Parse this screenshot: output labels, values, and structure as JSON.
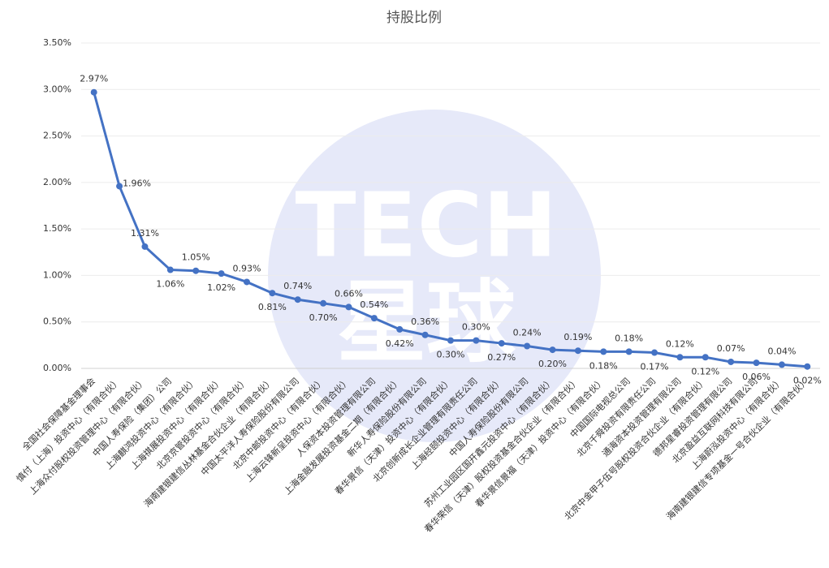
{
  "chart_data": {
    "type": "line",
    "title": "持股比例",
    "watermark": [
      "TECH",
      "星球"
    ],
    "categories": [
      "全国社会保障基金理事会",
      "慎付（上海）投资中心（有限合伙）",
      "上海众付股权投资管理中心（有限合伙）",
      "中国人寿保险（集团）公司",
      "上海麒鸿投资中心（有限合伙）",
      "上海祺展投资中心（有限合伙）",
      "北京京管投资中心（有限合伙）",
      "海南建银建信丛林基金合伙企业（有限合伙）",
      "中国太平洋人寿保险股份有限公司",
      "北京中邮投资中心（有限合伙）",
      "上海云锋新呈投资中心（有限合伙）",
      "人保资本投资管理有限公司",
      "上海金融发展投资基金二期（有限合伙）",
      "新华人寿保险股份有限公司",
      "春华景信（天津）投资中心（有限合伙）",
      "北京创新成长企业管理有限责任公司",
      "上海经颐投资中心（有限合伙）",
      "中国人寿保险股份有限公司",
      "苏州工业园区国开鑫元投资中心（有限合伙）",
      "春华荣信（天津）股权投资基金合伙企业（有限合伙）",
      "春华景信景福（天津）投资中心（有限合伙）",
      "中国国际电视总公司",
      "北京千舜投资有限责任公司",
      "通海资本投资管理有限公司",
      "北京中金甲子伍号股权投资合伙企业（有限合伙）",
      "德邦星睿投资管理有限公司",
      "北京盈益互联网科技有限公司",
      "上海蔚泓投资中心（有限合伙）",
      "海南建银建信专项基金一号合伙企业（有限合伙）"
    ],
    "series": [
      {
        "name": "持股比例",
        "color": "#4472c4",
        "values": [
          2.97,
          1.96,
          1.31,
          1.06,
          1.05,
          1.02,
          0.93,
          0.81,
          0.74,
          0.7,
          0.66,
          0.54,
          0.42,
          0.36,
          0.3,
          0.3,
          0.27,
          0.24,
          0.2,
          0.19,
          0.18,
          0.18,
          0.17,
          0.12,
          0.12,
          0.07,
          0.06,
          0.04,
          0.02
        ],
        "value_labels": [
          "2.97%",
          "1.96%",
          "1.31%",
          "1.06%",
          "1.05%",
          "1.02%",
          "0.93%",
          "0.81%",
          "0.74%",
          "0.70%",
          "0.66%",
          "0.54%",
          "0.42%",
          "0.36%",
          "0.30%",
          "0.30%",
          "0.27%",
          "0.24%",
          "0.20%",
          "0.19%",
          "0.18%",
          "0.18%",
          "0.17%",
          "0.12%",
          "0.12%",
          "0.07%",
          "0.06%",
          "0.04%",
          "0.02%"
        ]
      }
    ],
    "ylim": [
      0,
      3.5
    ],
    "yticks": [
      {
        "value": 0,
        "label": "0.00%"
      },
      {
        "value": 0.5,
        "label": "0.50%"
      },
      {
        "value": 1,
        "label": "1.00%"
      },
      {
        "value": 1.5,
        "label": "1.50%"
      },
      {
        "value": 2,
        "label": "2.00%"
      },
      {
        "value": 2.5,
        "label": "2.50%"
      },
      {
        "value": 3,
        "label": "3.00%"
      },
      {
        "value": 3.5,
        "label": "3.50%"
      }
    ],
    "grid": true
  }
}
